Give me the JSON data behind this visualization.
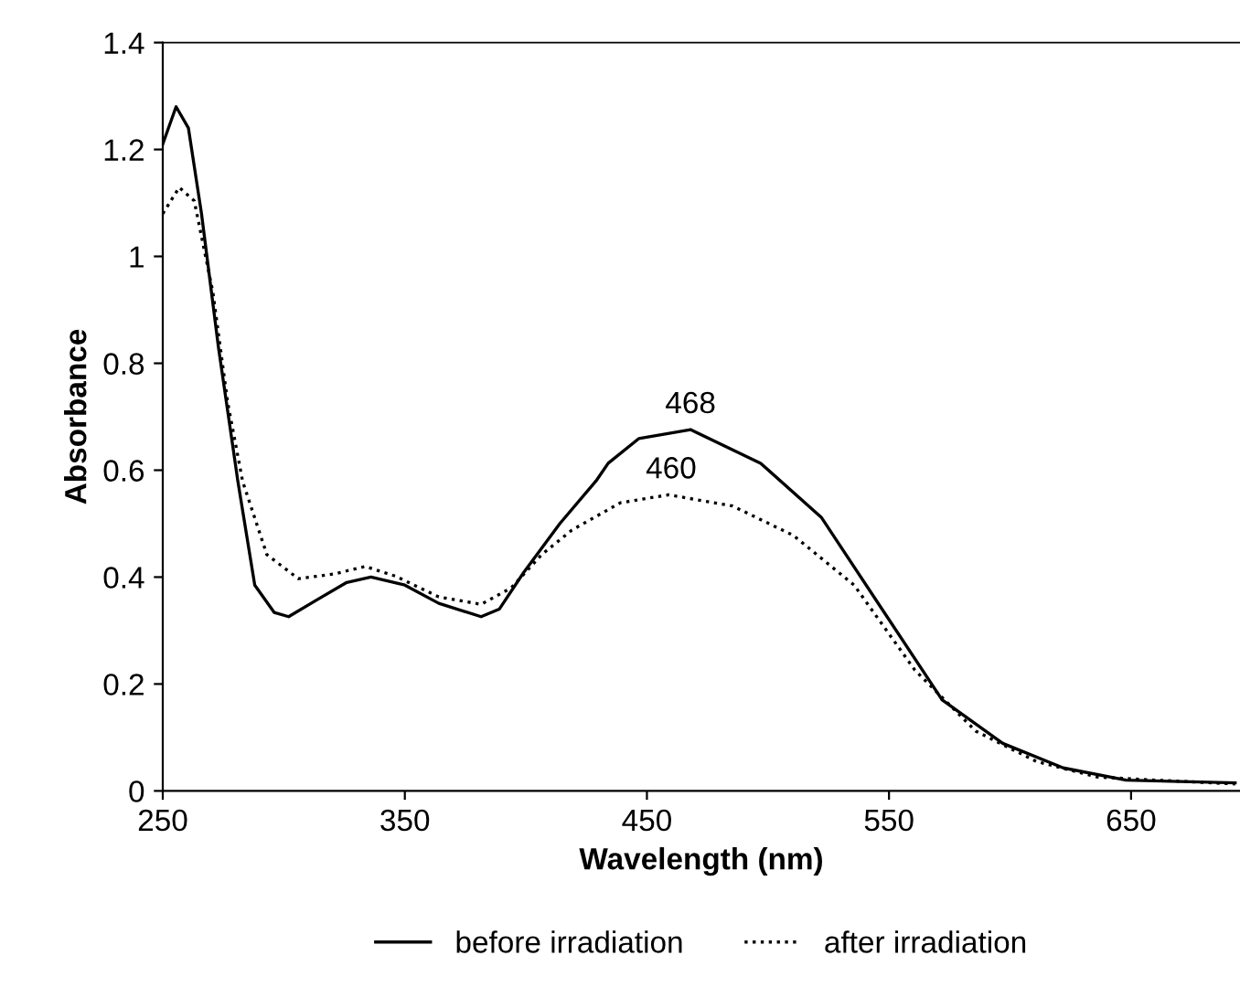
{
  "chart_data": {
    "type": "line",
    "xlabel": "Wavelength (nm)",
    "ylabel": "Absorbance",
    "xlim": [
      250,
      695
    ],
    "xticks": [
      250,
      350,
      450,
      550,
      650
    ],
    "ylim": [
      0,
      1.4
    ],
    "yticks": [
      0,
      0.2,
      0.4,
      0.6,
      0.8,
      1,
      1.2,
      1.4
    ],
    "grid": false,
    "legend": "bottom",
    "series": [
      {
        "name": "before irradiation",
        "color": "#000000",
        "line_style": "solid",
        "x": [
          250,
          255.5,
          260.6,
          266,
          273,
          281,
          288,
          296,
          302,
          313.5,
          326,
          336,
          350,
          364,
          381.5,
          389,
          399,
          414,
          429,
          434,
          446.6,
          468,
          497,
          522,
          547,
          572,
          597,
          622,
          648,
          693
        ],
        "values": [
          1.21,
          1.28,
          1.24,
          1.08,
          0.83,
          0.58,
          0.385,
          0.334,
          0.326,
          0.357,
          0.39,
          0.4,
          0.385,
          0.351,
          0.326,
          0.34,
          0.408,
          0.5,
          0.58,
          0.613,
          0.659,
          0.676,
          0.613,
          0.512,
          0.341,
          0.17,
          0.089,
          0.043,
          0.02,
          0.015
        ]
      },
      {
        "name": "after irradiation",
        "color": "#000000",
        "line_style": "dotted",
        "x": [
          250,
          256.8,
          263,
          270.7,
          276.8,
          283,
          293,
          306,
          321,
          333.6,
          346,
          364,
          381.5,
          394,
          406.5,
          419,
          439,
          459,
          485.4,
          510.5,
          535.6,
          560.7,
          585.8,
          610.9,
          636,
          661,
          693
        ],
        "values": [
          1.08,
          1.129,
          1.104,
          0.933,
          0.727,
          0.579,
          0.442,
          0.397,
          0.406,
          0.42,
          0.402,
          0.363,
          0.349,
          0.38,
          0.442,
          0.488,
          0.539,
          0.554,
          0.533,
          0.478,
          0.385,
          0.226,
          0.112,
          0.055,
          0.026,
          0.02,
          0.013
        ]
      }
    ],
    "annotations": [
      {
        "text": "468",
        "x": 468,
        "y": 0.676
      },
      {
        "text": "460",
        "x": 460,
        "y": 0.554
      }
    ]
  }
}
